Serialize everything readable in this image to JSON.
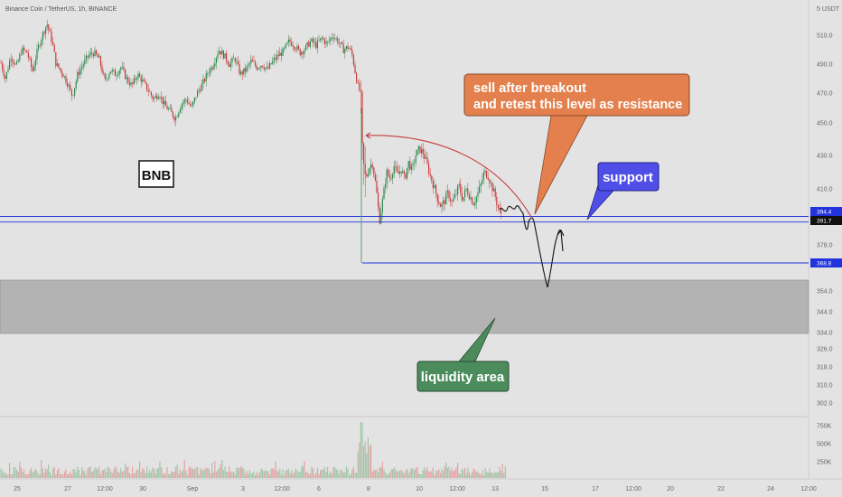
{
  "header": {
    "title": "Binance Coin / TetherUS, 1h, BINANCE",
    "unit": "5 USDT"
  },
  "colors": {
    "up": "#2c8a4f",
    "down": "#c93a3a",
    "level_line": "#2233dd",
    "orange": "#e3804d",
    "blue_box": "#4f4fe8",
    "green_box": "#4b8b5c",
    "zone": "#b3b3b3"
  },
  "chart_data": {
    "type": "candlestick",
    "symbol": "BNB",
    "price_axis": [
      "510.0",
      "490.0",
      "470.0",
      "450.0",
      "430.0",
      "410.0",
      "378.0",
      "354.0",
      "344.0",
      "334.0",
      "326.0",
      "318.0",
      "310.0",
      "302.0"
    ],
    "price_values": [
      510,
      490,
      470,
      450,
      430,
      410,
      378,
      354,
      344,
      334,
      326,
      318,
      310,
      302
    ],
    "volume_axis": [
      "750K",
      "500K",
      "250K"
    ],
    "volume_values": [
      750000,
      500000,
      250000
    ],
    "time_axis": [
      "25",
      "27",
      "12:00",
      "30",
      "Sep",
      "3",
      "12:00",
      "6",
      "8",
      "10",
      "12:00",
      "13",
      "15",
      "17",
      "12:00",
      "20",
      "22",
      "24",
      "12:00"
    ],
    "levels": [
      {
        "name": "support",
        "value": 394.4,
        "label": "394.4"
      },
      {
        "name": "current",
        "value": 391.7,
        "label": "391.7"
      },
      {
        "name": "low",
        "value": 368.8,
        "label": "368.8"
      }
    ],
    "zone": {
      "name": "liquidity area",
      "from": 334,
      "to": 358
    },
    "ohlc_path": [
      [
        0,
        493
      ],
      [
        6,
        480
      ],
      [
        12,
        496
      ],
      [
        18,
        488
      ],
      [
        24,
        500
      ],
      [
        30,
        498
      ],
      [
        36,
        485
      ],
      [
        40,
        496
      ],
      [
        44,
        505
      ],
      [
        48,
        512
      ],
      [
        52,
        518
      ],
      [
        58,
        505
      ],
      [
        62,
        490
      ],
      [
        68,
        485
      ],
      [
        74,
        478
      ],
      [
        80,
        468
      ],
      [
        86,
        483
      ],
      [
        92,
        490
      ],
      [
        98,
        496
      ],
      [
        104,
        498
      ],
      [
        110,
        493
      ],
      [
        116,
        478
      ],
      [
        122,
        486
      ],
      [
        128,
        483
      ],
      [
        134,
        488
      ],
      [
        140,
        480
      ],
      [
        146,
        475
      ],
      [
        152,
        483
      ],
      [
        158,
        478
      ],
      [
        164,
        472
      ],
      [
        170,
        466
      ],
      [
        176,
        470
      ],
      [
        182,
        462
      ],
      [
        188,
        458
      ],
      [
        194,
        453
      ],
      [
        200,
        462
      ],
      [
        206,
        466
      ],
      [
        212,
        460
      ],
      [
        218,
        470
      ],
      [
        224,
        476
      ],
      [
        230,
        484
      ],
      [
        236,
        490
      ],
      [
        242,
        500
      ],
      [
        248,
        496
      ],
      [
        254,
        490
      ],
      [
        260,
        494
      ],
      [
        266,
        483
      ],
      [
        272,
        486
      ],
      [
        278,
        492
      ],
      [
        284,
        488
      ],
      [
        290,
        490
      ],
      [
        296,
        486
      ],
      [
        302,
        492
      ],
      [
        308,
        496
      ],
      [
        314,
        499
      ],
      [
        320,
        506
      ],
      [
        326,
        503
      ],
      [
        332,
        498
      ],
      [
        338,
        501
      ],
      [
        344,
        506
      ],
      [
        350,
        503
      ],
      [
        356,
        508
      ],
      [
        362,
        504
      ],
      [
        368,
        510
      ],
      [
        374,
        506
      ],
      [
        380,
        500
      ],
      [
        386,
        502
      ],
      [
        390,
        496
      ],
      [
        393,
        485
      ],
      [
        396,
        475
      ],
      [
        399,
        470
      ],
      [
        401,
        430
      ],
      [
        404,
        415
      ],
      [
        408,
        422
      ],
      [
        412,
        426
      ],
      [
        416,
        412
      ],
      [
        420,
        392
      ],
      [
        424,
        405
      ],
      [
        428,
        420
      ],
      [
        432,
        416
      ],
      [
        436,
        424
      ],
      [
        440,
        418
      ],
      [
        444,
        422
      ],
      [
        448,
        416
      ],
      [
        452,
        426
      ],
      [
        456,
        421
      ],
      [
        460,
        430
      ],
      [
        464,
        434
      ],
      [
        468,
        432
      ],
      [
        472,
        426
      ],
      [
        476,
        418
      ],
      [
        480,
        412
      ],
      [
        484,
        405
      ],
      [
        488,
        400
      ],
      [
        492,
        403
      ],
      [
        496,
        408
      ],
      [
        500,
        402
      ],
      [
        504,
        406
      ],
      [
        508,
        412
      ],
      [
        512,
        404
      ],
      [
        516,
        410
      ],
      [
        520,
        406
      ],
      [
        524,
        402
      ],
      [
        528,
        406
      ],
      [
        532,
        412
      ],
      [
        536,
        420
      ],
      [
        540,
        418
      ],
      [
        544,
        412
      ],
      [
        548,
        406
      ],
      [
        552,
        398
      ],
      [
        556,
        395
      ]
    ],
    "volume_shape": [
      [
        398,
        470
      ],
      [
        400,
        475
      ],
      [
        402,
        490
      ],
      [
        404,
        505
      ],
      [
        406,
        510
      ],
      [
        408,
        514
      ],
      [
        410,
        516
      ]
    ],
    "annotations": [
      {
        "text": [
          "sell after breakout",
          "and retest this level as resistance"
        ]
      },
      {
        "text": [
          "support"
        ]
      },
      {
        "text": [
          "liquidity area"
        ]
      },
      {
        "text": [
          "BNB"
        ]
      }
    ]
  }
}
